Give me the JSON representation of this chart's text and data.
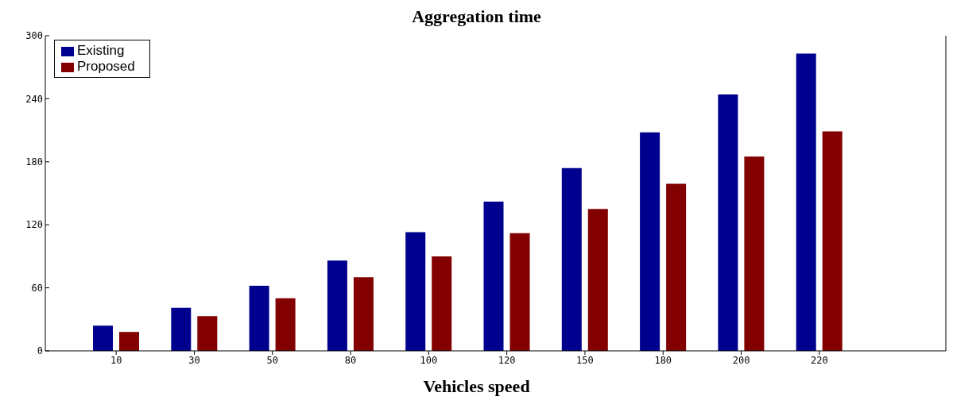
{
  "chart_data": {
    "type": "bar",
    "title": "Aggregation time",
    "xlabel": "Vehicles speed",
    "categories": [
      "10",
      "30",
      "50",
      "80",
      "100",
      "120",
      "150",
      "180",
      "200",
      "220"
    ],
    "series": [
      {
        "name": "Existing",
        "color": "#00008f",
        "values": [
          24,
          41,
          62,
          86,
          113,
          142,
          174,
          208,
          244,
          283
        ]
      },
      {
        "name": "Proposed",
        "color": "#820000",
        "values": [
          18,
          33,
          50,
          70,
          90,
          112,
          135,
          159,
          185,
          209
        ]
      }
    ],
    "ylim": [
      0,
      300
    ],
    "yticks": [
      0,
      60,
      120,
      180,
      240,
      300
    ],
    "grid": false,
    "legend": "top left"
  }
}
